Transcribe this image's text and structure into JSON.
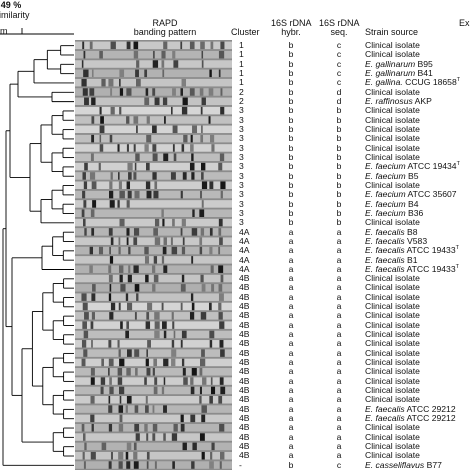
{
  "header": {
    "scale_percent": "49 %",
    "scale_label": "imilarity",
    "left_clip": "m",
    "rapd_line1": "RAPD",
    "rapd_line2": "banding pattern",
    "cluster": "Cluster",
    "hybr_line1": "16S rDNA",
    "hybr_line2": "hybr.",
    "seq_line1": "16S rDNA",
    "seq_line2": "seq.",
    "source": "Strain source",
    "right_clip": "Ex"
  },
  "rows": [
    {
      "cluster": "1",
      "hybr": "b",
      "seq": "c",
      "src_pre": "",
      "src_it": "",
      "src_post": "Clinical isolate",
      "sup": ""
    },
    {
      "cluster": "1",
      "hybr": "b",
      "seq": "c",
      "src_pre": "",
      "src_it": "",
      "src_post": "Clinical isolate",
      "sup": ""
    },
    {
      "cluster": "1",
      "hybr": "b",
      "seq": "c",
      "src_pre": "",
      "src_it": "E. gallinarum",
      "src_post": " B95",
      "sup": ""
    },
    {
      "cluster": "1",
      "hybr": "b",
      "seq": "c",
      "src_pre": "",
      "src_it": "E. gallinarum",
      "src_post": " B41",
      "sup": ""
    },
    {
      "cluster": "1",
      "hybr": "b",
      "seq": "c",
      "src_pre": "",
      "src_it": "E. gallina.",
      "src_post": " CCUG 18658",
      "sup": "T"
    },
    {
      "cluster": "2",
      "hybr": "b",
      "seq": "d",
      "src_pre": "",
      "src_it": "",
      "src_post": "Clinical isolate",
      "sup": ""
    },
    {
      "cluster": "2",
      "hybr": "b",
      "seq": "d",
      "src_pre": "",
      "src_it": "E. raffinosus",
      "src_post": " AKP",
      "sup": ""
    },
    {
      "cluster": "3",
      "hybr": "b",
      "seq": "b",
      "src_pre": "",
      "src_it": "",
      "src_post": "Clinical isolate",
      "sup": ""
    },
    {
      "cluster": "3",
      "hybr": "b",
      "seq": "b",
      "src_pre": "",
      "src_it": "",
      "src_post": "Clinical isolate",
      "sup": ""
    },
    {
      "cluster": "3",
      "hybr": "b",
      "seq": "b",
      "src_pre": "",
      "src_it": "",
      "src_post": "Clinical isolate",
      "sup": ""
    },
    {
      "cluster": "3",
      "hybr": "b",
      "seq": "b",
      "src_pre": "",
      "src_it": "",
      "src_post": "Clinical isolate",
      "sup": ""
    },
    {
      "cluster": "3",
      "hybr": "b",
      "seq": "b",
      "src_pre": "",
      "src_it": "",
      "src_post": "Clinical isolate",
      "sup": ""
    },
    {
      "cluster": "3",
      "hybr": "b",
      "seq": "b",
      "src_pre": "",
      "src_it": "",
      "src_post": "Clinical isolate",
      "sup": ""
    },
    {
      "cluster": "3",
      "hybr": "b",
      "seq": "b",
      "src_pre": "",
      "src_it": "E. faecium",
      "src_post": " ATCC 19434",
      "sup": "T"
    },
    {
      "cluster": "3",
      "hybr": "b",
      "seq": "b",
      "src_pre": "",
      "src_it": "E. faecium",
      "src_post": " B5",
      "sup": ""
    },
    {
      "cluster": "3",
      "hybr": "b",
      "seq": "b",
      "src_pre": "",
      "src_it": "",
      "src_post": "Clinical isolate",
      "sup": ""
    },
    {
      "cluster": "3",
      "hybr": "b",
      "seq": "b",
      "src_pre": "",
      "src_it": "E. faecium",
      "src_post": " ATCC 35607",
      "sup": ""
    },
    {
      "cluster": "3",
      "hybr": "b",
      "seq": "b",
      "src_pre": "",
      "src_it": "E. faecium",
      "src_post": " B4",
      "sup": ""
    },
    {
      "cluster": "3",
      "hybr": "b",
      "seq": "b",
      "src_pre": "",
      "src_it": "E. faecium",
      "src_post": " B36",
      "sup": ""
    },
    {
      "cluster": "3",
      "hybr": "b",
      "seq": "b",
      "src_pre": "",
      "src_it": "",
      "src_post": "Clinical isolate",
      "sup": ""
    },
    {
      "cluster": "4A",
      "hybr": "a",
      "seq": "a",
      "src_pre": "",
      "src_it": "E. faecalis",
      "src_post": " B8",
      "sup": ""
    },
    {
      "cluster": "4A",
      "hybr": "a",
      "seq": "a",
      "src_pre": "",
      "src_it": "E. faecalis",
      "src_post": " V583",
      "sup": ""
    },
    {
      "cluster": "4A",
      "hybr": "a",
      "seq": "a",
      "src_pre": "",
      "src_it": "E. faecalis",
      "src_post": " ATCC 19433",
      "sup": "T"
    },
    {
      "cluster": "4A",
      "hybr": "a",
      "seq": "a",
      "src_pre": "",
      "src_it": "E. faecalis",
      "src_post": " B1",
      "sup": ""
    },
    {
      "cluster": "4A",
      "hybr": "a",
      "seq": "a",
      "src_pre": "",
      "src_it": "E. faecalis",
      "src_post": " ATCC 19433",
      "sup": "T"
    },
    {
      "cluster": "4B",
      "hybr": "a",
      "seq": "a",
      "src_pre": "",
      "src_it": "",
      "src_post": "Clinical isolate",
      "sup": ""
    },
    {
      "cluster": "4B",
      "hybr": "a",
      "seq": "a",
      "src_pre": "",
      "src_it": "",
      "src_post": "Clinical isolate",
      "sup": ""
    },
    {
      "cluster": "4B",
      "hybr": "a",
      "seq": "a",
      "src_pre": "",
      "src_it": "",
      "src_post": "Clinical isolate",
      "sup": ""
    },
    {
      "cluster": "4B",
      "hybr": "a",
      "seq": "a",
      "src_pre": "",
      "src_it": "",
      "src_post": "Clinical isolate",
      "sup": ""
    },
    {
      "cluster": "4B",
      "hybr": "a",
      "seq": "a",
      "src_pre": "",
      "src_it": "",
      "src_post": "Clinical isolate",
      "sup": ""
    },
    {
      "cluster": "4B",
      "hybr": "a",
      "seq": "a",
      "src_pre": "",
      "src_it": "",
      "src_post": "Clinical isolate",
      "sup": ""
    },
    {
      "cluster": "4B",
      "hybr": "a",
      "seq": "a",
      "src_pre": "",
      "src_it": "",
      "src_post": "Clinical isolate",
      "sup": ""
    },
    {
      "cluster": "4B",
      "hybr": "a",
      "seq": "a",
      "src_pre": "",
      "src_it": "",
      "src_post": "Clinical isolate",
      "sup": ""
    },
    {
      "cluster": "4B",
      "hybr": "a",
      "seq": "a",
      "src_pre": "",
      "src_it": "",
      "src_post": "Clinical isolate",
      "sup": ""
    },
    {
      "cluster": "4B",
      "hybr": "a",
      "seq": "a",
      "src_pre": "",
      "src_it": "",
      "src_post": "Clinical isolate",
      "sup": ""
    },
    {
      "cluster": "4B",
      "hybr": "a",
      "seq": "a",
      "src_pre": "",
      "src_it": "",
      "src_post": "Clinical isolate",
      "sup": ""
    },
    {
      "cluster": "4B",
      "hybr": "a",
      "seq": "a",
      "src_pre": "",
      "src_it": "",
      "src_post": "Clinical isolate",
      "sup": ""
    },
    {
      "cluster": "4B",
      "hybr": "a",
      "seq": "a",
      "src_pre": "",
      "src_it": "",
      "src_post": "Clinical isolate",
      "sup": ""
    },
    {
      "cluster": "4B",
      "hybr": "a",
      "seq": "a",
      "src_pre": "",
      "src_it": "",
      "src_post": "Clinical isolate",
      "sup": ""
    },
    {
      "cluster": "4B",
      "hybr": "a",
      "seq": "a",
      "src_pre": "",
      "src_it": "E. faecalis",
      "src_post": " ATCC 29212",
      "sup": ""
    },
    {
      "cluster": "4B",
      "hybr": "a",
      "seq": "a",
      "src_pre": "",
      "src_it": "E. faecalis",
      "src_post": " ATCC 29212",
      "sup": ""
    },
    {
      "cluster": "4B",
      "hybr": "a",
      "seq": "a",
      "src_pre": "",
      "src_it": "",
      "src_post": "Clinical isolate",
      "sup": ""
    },
    {
      "cluster": "4B",
      "hybr": "a",
      "seq": "a",
      "src_pre": "",
      "src_it": "",
      "src_post": "Clinical isolate",
      "sup": ""
    },
    {
      "cluster": "4B",
      "hybr": "a",
      "seq": "a",
      "src_pre": "",
      "src_it": "",
      "src_post": "Clinical isolate",
      "sup": ""
    },
    {
      "cluster": "4B",
      "hybr": "a",
      "seq": "a",
      "src_pre": "",
      "src_it": "",
      "src_post": "Clinical isolate",
      "sup": ""
    },
    {
      "cluster": "-",
      "hybr": "b",
      "seq": "c",
      "src_pre": "",
      "src_it": "E. casseliflavus",
      "src_post": " B77",
      "sup": ""
    }
  ]
}
